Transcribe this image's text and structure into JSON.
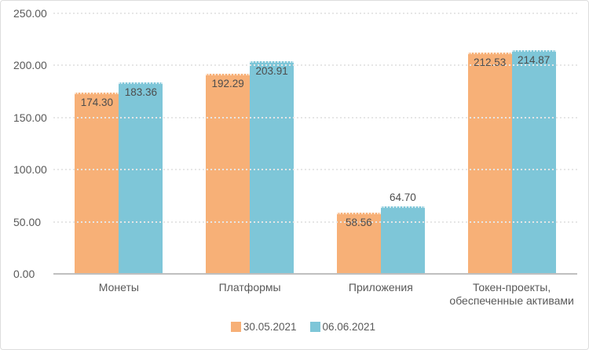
{
  "frame": {
    "background": "#FFFFFF",
    "border_color": "#DDDDDD"
  },
  "chart_data": {
    "type": "bar",
    "title": "",
    "xlabel": "",
    "ylabel": "",
    "categories": [
      "Монеты",
      "Платформы",
      "Приложения",
      "Токен-проекты,\nобеспеченные активами"
    ],
    "series": [
      {
        "name": "30.05.2021",
        "color": "#F7B077",
        "values": [
          174.3,
          192.29,
          58.56,
          212.53
        ],
        "labels": [
          "174.30",
          "192.29",
          "58.56",
          "212.53"
        ],
        "label_outside": [
          false,
          false,
          false,
          false
        ]
      },
      {
        "name": "06.06.2021",
        "color": "#7EC6D8",
        "values": [
          183.36,
          203.91,
          64.7,
          214.87
        ],
        "labels": [
          "183.36",
          "203.91",
          "64.70",
          "214.87"
        ],
        "label_outside": [
          false,
          false,
          true,
          false
        ]
      }
    ],
    "ylim": [
      0,
      250
    ],
    "y_ticks": [
      {
        "value": 0,
        "label": "0.00"
      },
      {
        "value": 50,
        "label": "50.00"
      },
      {
        "value": 100,
        "label": "100.00"
      },
      {
        "value": 150,
        "label": "150.00"
      },
      {
        "value": 200,
        "label": "200.00"
      },
      {
        "value": 250,
        "label": "250.00"
      }
    ],
    "grid": true,
    "gridline_color": "#E6E6E6",
    "axis_line_color": "#BFBFBF",
    "tick_text_color": "#595959",
    "value_label_color": "#4D4D4D",
    "legend_position": "bottom"
  }
}
